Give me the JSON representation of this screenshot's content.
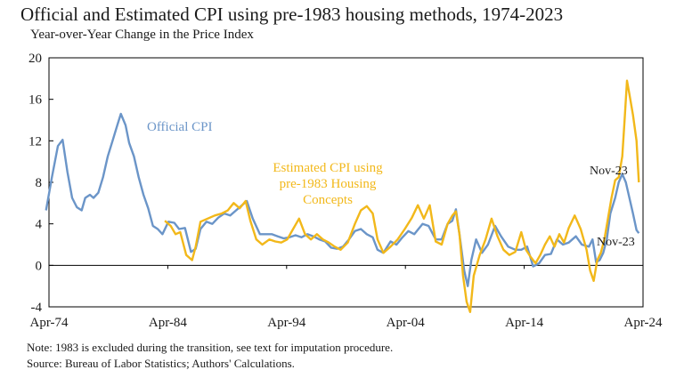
{
  "chart_data": {
    "type": "line",
    "title": "Official and Estimated CPI using pre-1983 housing methods, 1974-2023",
    "subtitle": "Year-over-Year Change in the Price Index",
    "xlabel": "",
    "ylabel": "",
    "ylim": [
      -4,
      20
    ],
    "yticks": [
      -4,
      0,
      4,
      8,
      12,
      16,
      20
    ],
    "xlim": [
      1974.25,
      2024.25
    ],
    "xticks": [
      {
        "label": "Apr-74",
        "value": 1974.25
      },
      {
        "label": "Apr-84",
        "value": 1984.25
      },
      {
        "label": "Apr-94",
        "value": 1994.25
      },
      {
        "label": "Apr-04",
        "value": 2004.25
      },
      {
        "label": "Apr-14",
        "value": 2014.25
      },
      {
        "label": "Apr-24",
        "value": 2024.25
      }
    ],
    "series": [
      {
        "name": "Official CPI",
        "color": "#6b95c8",
        "x": [
          1974.0,
          1974.5,
          1975.0,
          1975.4,
          1975.8,
          1976.2,
          1976.6,
          1977.0,
          1977.3,
          1977.7,
          1978.0,
          1978.4,
          1978.8,
          1979.2,
          1979.6,
          1980.0,
          1980.3,
          1980.7,
          1981.0,
          1981.4,
          1981.8,
          1982.2,
          1982.6,
          1983.0,
          1983.4,
          1983.8,
          1984.3,
          1984.8,
          1985.2,
          1985.7,
          1986.2,
          1986.6,
          1987.0,
          1987.5,
          1988.0,
          1988.5,
          1989.0,
          1989.5,
          1990.0,
          1990.5,
          1990.9,
          1991.4,
          1992.0,
          1992.5,
          1993.0,
          1993.5,
          1994.0,
          1994.5,
          1995.0,
          1995.5,
          1996.0,
          1996.5,
          1997.0,
          1997.5,
          1998.0,
          1998.5,
          1999.0,
          1999.5,
          2000.0,
          2000.5,
          2001.0,
          2001.5,
          2001.9,
          2002.4,
          2003.0,
          2003.5,
          2004.0,
          2004.5,
          2005.0,
          2005.7,
          2006.2,
          2006.8,
          2007.3,
          2007.8,
          2008.2,
          2008.5,
          2008.8,
          2009.2,
          2009.5,
          2009.8,
          2010.2,
          2010.7,
          2011.2,
          2011.8,
          2012.3,
          2012.9,
          2013.5,
          2014.0,
          2014.5,
          2015.0,
          2015.5,
          2016.0,
          2016.5,
          2017.0,
          2017.5,
          2018.0,
          2018.6,
          2019.1,
          2019.7,
          2020.0,
          2020.3,
          2020.6,
          2020.9,
          2021.2,
          2021.5,
          2021.9,
          2022.2,
          2022.5,
          2022.8,
          2023.1,
          2023.4,
          2023.7,
          2023.9
        ],
        "values": [
          5.3,
          8.5,
          11.5,
          12.1,
          9.0,
          6.5,
          5.6,
          5.3,
          6.5,
          6.8,
          6.5,
          7.0,
          8.5,
          10.5,
          12.0,
          13.5,
          14.6,
          13.5,
          11.8,
          10.5,
          8.5,
          6.8,
          5.5,
          3.8,
          3.5,
          3.0,
          4.2,
          4.1,
          3.5,
          3.6,
          1.3,
          1.6,
          3.5,
          4.2,
          4.0,
          4.6,
          5.0,
          4.8,
          5.3,
          5.8,
          6.2,
          4.5,
          3.0,
          3.0,
          3.0,
          2.8,
          2.6,
          2.7,
          2.9,
          2.7,
          3.0,
          2.8,
          2.5,
          2.3,
          1.7,
          1.6,
          1.8,
          2.5,
          3.3,
          3.5,
          3.0,
          2.7,
          1.5,
          1.2,
          2.3,
          2.0,
          2.7,
          3.3,
          3.0,
          4.0,
          3.8,
          2.5,
          2.5,
          4.0,
          4.3,
          5.4,
          3.0,
          -0.5,
          -2.0,
          0.5,
          2.5,
          1.2,
          2.0,
          3.8,
          2.8,
          1.8,
          1.5,
          1.5,
          1.8,
          -0.1,
          0.2,
          1.0,
          1.1,
          2.5,
          2.0,
          2.2,
          2.8,
          2.0,
          1.8,
          2.5,
          0.3,
          0.5,
          1.2,
          2.5,
          5.0,
          6.5,
          8.0,
          8.8,
          8.0,
          6.5,
          5.0,
          3.4,
          3.1
        ]
      },
      {
        "name": "Estimated CPI using pre-1983 Housing Concepts",
        "color": "#f2b81a",
        "x": [
          1984.0,
          1984.5,
          1984.9,
          1985.3,
          1985.8,
          1986.3,
          1986.6,
          1987.0,
          1987.6,
          1988.2,
          1988.8,
          1989.3,
          1989.8,
          1990.3,
          1990.8,
          1991.2,
          1991.7,
          1992.2,
          1992.8,
          1993.3,
          1993.8,
          1994.3,
          1994.8,
          1995.3,
          1995.8,
          1996.3,
          1996.8,
          1997.3,
          1997.8,
          1998.3,
          1998.8,
          1999.4,
          2000.0,
          2000.5,
          2001.0,
          2001.5,
          2001.9,
          2002.4,
          2003.0,
          2003.6,
          2004.2,
          2004.8,
          2005.3,
          2005.8,
          2006.3,
          2006.8,
          2007.3,
          2007.8,
          2008.2,
          2008.5,
          2008.8,
          2009.1,
          2009.4,
          2009.7,
          2010.0,
          2010.5,
          2011.0,
          2011.5,
          2012.0,
          2012.5,
          2013.0,
          2013.5,
          2014.0,
          2014.4,
          2014.8,
          2015.2,
          2015.6,
          2016.0,
          2016.4,
          2016.8,
          2017.2,
          2017.6,
          2018.0,
          2018.5,
          2019.0,
          2019.5,
          2019.8,
          2020.1,
          2020.4,
          2020.7,
          2021.0,
          2021.3,
          2021.6,
          2021.9,
          2022.2,
          2022.5,
          2022.7,
          2022.9,
          2023.1,
          2023.4,
          2023.7,
          2023.9
        ],
        "values": [
          4.3,
          3.8,
          3.0,
          3.2,
          1.0,
          0.5,
          1.8,
          4.2,
          4.5,
          4.8,
          5.0,
          5.3,
          6.0,
          5.5,
          6.2,
          4.3,
          2.5,
          2.0,
          2.5,
          2.3,
          2.2,
          2.5,
          3.5,
          4.5,
          3.0,
          2.5,
          3.0,
          2.5,
          2.2,
          1.8,
          1.5,
          2.2,
          4.0,
          5.3,
          5.7,
          5.0,
          2.5,
          1.2,
          1.8,
          2.5,
          3.5,
          4.6,
          5.8,
          4.5,
          5.8,
          2.3,
          2.0,
          4.0,
          4.8,
          5.2,
          3.0,
          -1.0,
          -3.5,
          -4.5,
          -1.0,
          1.0,
          2.5,
          4.5,
          2.8,
          1.5,
          1.0,
          1.3,
          3.2,
          1.5,
          0.8,
          0.2,
          1.0,
          2.0,
          2.8,
          1.8,
          3.0,
          2.2,
          3.6,
          4.8,
          3.5,
          1.5,
          -0.5,
          -1.5,
          0.5,
          1.2,
          2.5,
          4.5,
          6.5,
          8.2,
          8.5,
          10.5,
          14.0,
          17.8,
          16.5,
          14.5,
          12.0,
          8.0
        ]
      }
    ],
    "annotations": [
      {
        "text": "Official CPI",
        "color": "#6b95c8"
      },
      {
        "text": "Estimated CPI using",
        "color": "#f2b81a"
      },
      {
        "text": "pre-1983 Housing",
        "color": "#f2b81a"
      },
      {
        "text": "Concepts",
        "color": "#f2b81a"
      },
      {
        "text": "Nov-23",
        "color": "#1a1a1a"
      },
      {
        "text": "Nov-23",
        "color": "#1a1a1a"
      }
    ],
    "notes": [
      "Note: 1983 is excluded during the transition, see text for imputation procedure.",
      "Source: Bureau of Labor Statistics; Authors' Calculations."
    ],
    "axis_color": "#000000",
    "grid": false
  }
}
